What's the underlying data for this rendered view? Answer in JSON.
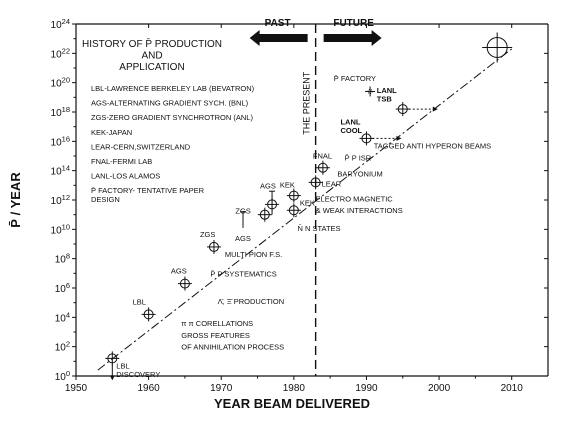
{
  "chart_data": {
    "type": "scatter",
    "title": "HISTORY OF P̄ PRODUCTION\nAND\nAPPLICATION",
    "xlabel": "YEAR BEAM DELIVERED",
    "ylabel": "P̄ / YEAR",
    "xlim": [
      1950,
      2015
    ],
    "ylim": [
      0,
      24
    ],
    "y_scale": "log10",
    "grid": false,
    "x_ticks": [
      "1950",
      "1960",
      "1970",
      "1980",
      "1990",
      "2000",
      "2010"
    ],
    "y_ticks": [
      "10^0",
      "10^2",
      "10^4",
      "10^6",
      "10^8",
      "10^10",
      "10^12",
      "10^14",
      "10^16",
      "10^18",
      "10^20",
      "10^22",
      "10^24"
    ],
    "points": [
      {
        "x": 1955,
        "y": 1.2,
        "label": "LBL\nDISCOVERY"
      },
      {
        "x": 1960,
        "y": 4.2,
        "label": "LBL"
      },
      {
        "x": 1965,
        "y": 6.3,
        "label": "AGS"
      },
      {
        "x": 1969,
        "y": 8.8,
        "label": "ZGS"
      },
      {
        "x": 1976,
        "y": 11.0,
        "label": "ZGS"
      },
      {
        "x": 1977,
        "y": 11.7,
        "label": "AGS"
      },
      {
        "x": 1980,
        "y": 11.3,
        "label": "KEK"
      },
      {
        "x": 1980,
        "y": 12.3,
        "label": "KEK"
      },
      {
        "x": 1983,
        "y": 13.2,
        "label": "LEAR"
      },
      {
        "x": 1984,
        "y": 14.2,
        "label": "FNAL"
      },
      {
        "x": 1990,
        "y": 16.2,
        "label": "LANL\nCOOL"
      },
      {
        "x": 1995,
        "y": 18.2,
        "label": "LANL\nTSB"
      },
      {
        "x": 2008,
        "y": 22.4,
        "label": ""
      }
    ],
    "range_markers": [
      {
        "x": 1973,
        "y_from": 10.1,
        "y_to": 11.2,
        "label": "AGS"
      },
      {
        "x": 1977,
        "y_from": 11.0,
        "y_to": 12.6,
        "label": ""
      }
    ],
    "trend_line": {
      "x": [
        1953,
        2010
      ],
      "y": [
        0.4,
        22.3
      ]
    },
    "present_year": 1983,
    "present_label": "THE PRESENT",
    "past_label": "PAST",
    "future_label": "FUTURE",
    "legend": [
      "LBL-LAWRENCE BERKELEY LAB (BEVATRON)",
      "AGS-ALTERNATING GRADIENT SYCH. (BNL)",
      "ZGS-ZERO GRADIENT SYNCHROTRON (ANL)",
      "KEK-JAPAN",
      "LEAR-CERN,SWITZERLAND",
      "FNAL-FERMI LAB",
      "LANL-LOS ALAMOS",
      "P̄ FACTORY- TENTATIVE PAPER\nDESIGN"
    ],
    "annotations": [
      {
        "x": 1964.5,
        "y": 3.4,
        "text": "π π CORELLATIONS"
      },
      {
        "x": 1964.5,
        "y": 2.6,
        "text": "GROSS FEATURES"
      },
      {
        "x": 1964.5,
        "y": 1.8,
        "text": "OF ANNIHILATION PROCESS"
      },
      {
        "x": 1969.5,
        "y": 4.9,
        "text": "Λ̄, Ξ̄  PRODUCTION"
      },
      {
        "x": 1968.5,
        "y": 6.8,
        "text": "P̄ P SYSTEMATICS"
      },
      {
        "x": 1970.5,
        "y": 8.1,
        "text": "MULTI PION F.S."
      },
      {
        "x": 1980.5,
        "y": 9.9,
        "text": "N̄ N STATES"
      },
      {
        "x": 1983,
        "y": 11.9,
        "text": "ELECTRO MAGNETIC"
      },
      {
        "x": 1983,
        "y": 11.1,
        "text": "& WEAK INTERACTIONS"
      },
      {
        "x": 1986,
        "y": 13.6,
        "text": "BARYONIUM"
      },
      {
        "x": 1987,
        "y": 14.7,
        "text": "P̄ P ISR"
      },
      {
        "x": 1991,
        "y": 15.5,
        "text": "TAGGED ANTI HYPERON BEAMS"
      },
      {
        "x": 1985.5,
        "y": 20.1,
        "text": "P̄ FACTORY"
      }
    ]
  }
}
